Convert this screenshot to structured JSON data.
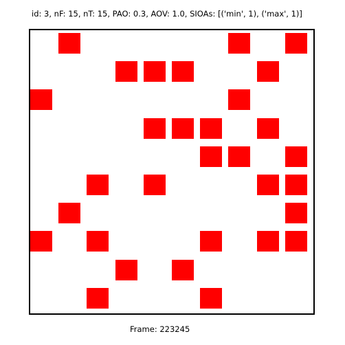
{
  "header": {
    "text": "id: 3, nF: 15, nT: 15, PAO: 0.3, AOV: 1.0, SIOAs: [('min', 1), ('max', 1)]"
  },
  "board": {
    "rows": 10,
    "cols": 10,
    "fill_color": "#ff0000",
    "cells": [
      [
        0,
        1
      ],
      [
        0,
        7
      ],
      [
        0,
        9
      ],
      [
        1,
        3
      ],
      [
        1,
        4
      ],
      [
        1,
        5
      ],
      [
        1,
        8
      ],
      [
        2,
        0
      ],
      [
        2,
        7
      ],
      [
        3,
        4
      ],
      [
        3,
        5
      ],
      [
        3,
        6
      ],
      [
        3,
        8
      ],
      [
        4,
        6
      ],
      [
        4,
        7
      ],
      [
        4,
        9
      ],
      [
        5,
        2
      ],
      [
        5,
        4
      ],
      [
        5,
        8
      ],
      [
        5,
        9
      ],
      [
        6,
        1
      ],
      [
        6,
        9
      ],
      [
        7,
        0
      ],
      [
        7,
        2
      ],
      [
        7,
        6
      ],
      [
        7,
        8
      ],
      [
        7,
        9
      ],
      [
        8,
        3
      ],
      [
        8,
        5
      ],
      [
        9,
        2
      ],
      [
        9,
        6
      ]
    ]
  },
  "footer": {
    "text": "Frame: 223245"
  }
}
